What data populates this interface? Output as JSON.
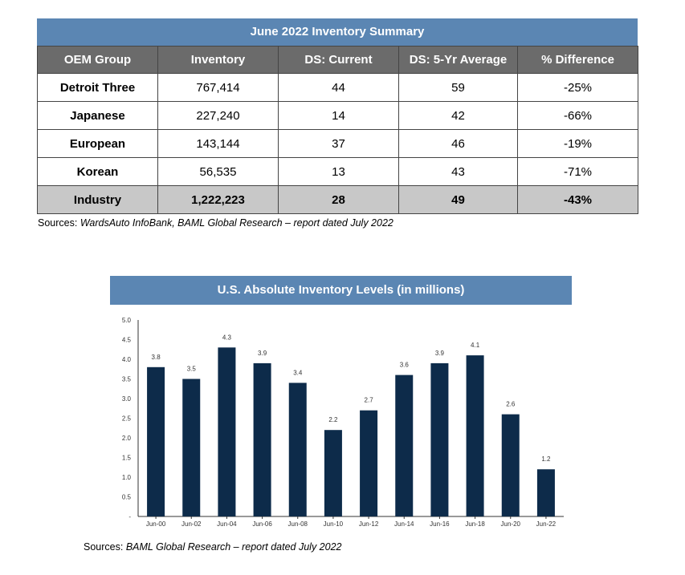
{
  "table": {
    "title": "June 2022 Inventory Summary",
    "headers": [
      "OEM Group",
      "Inventory",
      "DS: Current",
      "DS: 5-Yr Average",
      "% Difference"
    ],
    "rows": [
      [
        "Detroit Three",
        "767,414",
        "44",
        "59",
        "-25%"
      ],
      [
        "Japanese",
        "227,240",
        "14",
        "42",
        "-66%"
      ],
      [
        "European",
        "143,144",
        "37",
        "46",
        "-19%"
      ],
      [
        "Korean",
        "56,535",
        "13",
        "43",
        "-71%"
      ]
    ],
    "total": [
      "Industry",
      "1,222,223",
      "28",
      "49",
      "-43%"
    ],
    "source_prefix": "Sources: ",
    "source_italic": "WardsAuto InfoBank, BAML Global Research – report dated July 2022"
  },
  "chart_title": "U.S. Absolute Inventory Levels (in millions)",
  "chart_source_prefix": "Sources: ",
  "chart_source_italic": "BAML Global Research – report dated July 2022",
  "colors": {
    "header_blue": "#5b86b3",
    "header_gray": "#6b6b6b",
    "total_row": "#c8c8c8",
    "bar": "#0d2b4a"
  },
  "chart_data": {
    "type": "bar",
    "title": "U.S. Absolute Inventory Levels (in millions)",
    "categories": [
      "Jun-00",
      "Jun-02",
      "Jun-04",
      "Jun-06",
      "Jun-08",
      "Jun-10",
      "Jun-12",
      "Jun-14",
      "Jun-16",
      "Jun-18",
      "Jun-20",
      "Jun-22"
    ],
    "values": [
      3.8,
      3.5,
      4.3,
      3.9,
      3.4,
      2.2,
      2.7,
      3.6,
      3.9,
      4.1,
      2.6,
      1.2
    ],
    "data_labels": [
      "3.8",
      "3.5",
      "4.3",
      "3.9",
      "3.4",
      "2.2",
      "2.7",
      "3.6",
      "3.9",
      "4.1",
      "2.6",
      "1.2"
    ],
    "ylim": [
      0,
      5.0
    ],
    "yticks": [
      0,
      0.5,
      1.0,
      1.5,
      2.0,
      2.5,
      3.0,
      3.5,
      4.0,
      4.5,
      5.0
    ],
    "ytick_labels": [
      "-",
      "0.5",
      "1.0",
      "1.5",
      "2.0",
      "2.5",
      "3.0",
      "3.5",
      "4.0",
      "4.5",
      "5.0"
    ],
    "grid": false,
    "xlabel": "",
    "ylabel": ""
  }
}
